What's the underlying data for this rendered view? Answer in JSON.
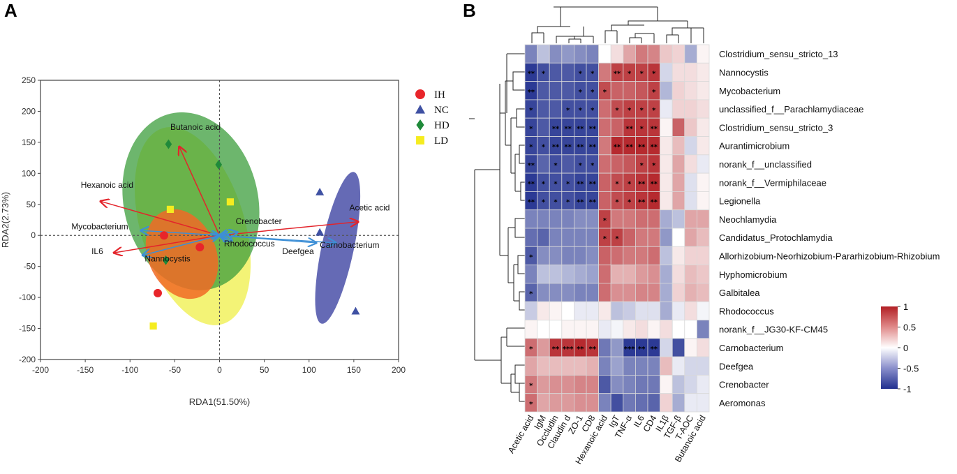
{
  "panels": {
    "a_label": "A",
    "b_label": "B"
  },
  "chart_data": [
    {
      "type": "scatter",
      "subtype": "RDA biplot",
      "title": "",
      "xlabel": "RDA1(51.50%)",
      "ylabel": "RDA2(2.73%)",
      "xlim": [
        -200,
        200
      ],
      "ylim": [
        -200,
        250
      ],
      "xticks": [
        -200,
        -150,
        -100,
        -50,
        0,
        50,
        100,
        150,
        200
      ],
      "yticks": [
        -200,
        -150,
        -100,
        -50,
        0,
        50,
        100,
        150,
        200,
        250
      ],
      "legend": [
        {
          "name": "IH",
          "shape": "circle",
          "color": "#e8252a"
        },
        {
          "name": "NC",
          "shape": "triangle",
          "color": "#3f51a3"
        },
        {
          "name": "HD",
          "shape": "diamond",
          "color": "#1f8a3a"
        },
        {
          "name": "LD",
          "shape": "square",
          "color": "#f5ec1f"
        }
      ],
      "ellipses": [
        {
          "group": "LD",
          "color": "#eeee3c",
          "opacity": 0.7,
          "cx": -30,
          "cy": 15,
          "rx": 58,
          "ry": 165,
          "angle": -17
        },
        {
          "group": "HD",
          "color": "#3c9e3c",
          "opacity": 0.75,
          "cx": -32,
          "cy": 55,
          "rx": 75,
          "ry": 145,
          "angle": -13
        },
        {
          "group": "IH",
          "color": "#f06a26",
          "opacity": 0.85,
          "cx": -42,
          "cy": -30,
          "rx": 38,
          "ry": 75,
          "angle": -23
        },
        {
          "group": "NC",
          "color": "#4a50a8",
          "opacity": 0.85,
          "cx": 132,
          "cy": -20,
          "rx": 18,
          "ry": 125,
          "angle": 12
        }
      ],
      "series": [
        {
          "name": "IH",
          "points": [
            [
              -62,
              0
            ],
            [
              -22,
              -19
            ],
            [
              -69,
              -93
            ]
          ]
        },
        {
          "name": "NC",
          "points": [
            [
              112,
              70
            ],
            [
              112,
              5
            ],
            [
              152,
              -122
            ]
          ]
        },
        {
          "name": "HD",
          "points": [
            [
              -57,
              147
            ],
            [
              -1,
              114
            ],
            [
              -60,
              -40
            ]
          ]
        },
        {
          "name": "LD",
          "points": [
            [
              -55,
              42
            ],
            [
              12,
              54
            ],
            [
              -74,
              -146
            ]
          ]
        }
      ],
      "env_arrows": [
        {
          "name": "Butanoic acid",
          "x": -45,
          "y": 143
        },
        {
          "name": "Hexanoic acid",
          "x": -133,
          "y": 55
        },
        {
          "name": "Acetic acid",
          "x": 155,
          "y": 22
        },
        {
          "name": "IL6",
          "x": -118,
          "y": -28
        }
      ],
      "species_arrows": [
        {
          "name": "Crenobacter",
          "x": 20,
          "y": 5
        },
        {
          "name": "Mycobacterium",
          "x": -88,
          "y": 8
        },
        {
          "name": "Nannocystis",
          "x": -86,
          "y": -32
        },
        {
          "name": "Rhodococcus",
          "x": 14,
          "y": -8
        },
        {
          "name": "Deefgea",
          "x": 108,
          "y": -12
        },
        {
          "name": "Carnobacterium",
          "x": 130,
          "y": -12
        }
      ]
    },
    {
      "type": "heatmap",
      "title": "",
      "rows": [
        "Clostridium_sensu_stricto_13",
        "Nannocystis",
        "Mycobacterium",
        "unclassified_f__Parachlamydiaceae",
        "Clostridium_sensu_stricto_3",
        "Aurantimicrobium",
        "norank_f__unclassified",
        "norank_f__Vermiphilaceae",
        "Legionella",
        "Neochlamydia",
        "Candidatus_Protochlamydia",
        "Allorhizobium-Neorhizobium-Pararhizobium-Rhizobium",
        "Hyphomicrobium",
        "Galbitalea",
        "Rhodococcus",
        "norank_f__JG30-KF-CM45",
        "Carnobacterium",
        "Deefgea",
        "Crenobacter",
        "Aeromonas"
      ],
      "columns": [
        "Acetic acid",
        "IgM",
        "Occludin",
        "Claudin d",
        "ZO-1",
        "CD8",
        "Hexanoic acid",
        "IgT",
        "TNF-α",
        "IL6",
        "CD4",
        "IL1β",
        "TGF-β",
        "T-AOC",
        "Butanoic acid"
      ],
      "values": [
        [
          -0.6,
          -0.3,
          -0.55,
          -0.5,
          -0.55,
          -0.6,
          0.0,
          0.15,
          0.4,
          0.6,
          0.55,
          0.25,
          0.2,
          -0.4,
          0.05
        ],
        [
          -0.95,
          -0.85,
          -0.8,
          -0.8,
          -0.85,
          -0.85,
          0.6,
          0.85,
          0.85,
          0.85,
          0.9,
          -0.2,
          0.15,
          0.15,
          0.1
        ],
        [
          -0.95,
          -0.8,
          -0.8,
          -0.8,
          -0.85,
          -0.85,
          0.8,
          0.7,
          0.7,
          0.75,
          0.85,
          -0.35,
          0.2,
          0.15,
          0.1
        ],
        [
          -0.9,
          -0.8,
          -0.8,
          -0.85,
          -0.85,
          -0.85,
          0.65,
          0.8,
          0.85,
          0.85,
          0.85,
          -0.1,
          0.2,
          0.2,
          0.15
        ],
        [
          -0.9,
          -0.8,
          -0.9,
          -0.9,
          -0.9,
          -0.9,
          0.65,
          0.7,
          0.9,
          0.9,
          0.9,
          0.05,
          0.7,
          0.25,
          0.1
        ],
        [
          -0.9,
          -0.85,
          -0.9,
          -0.9,
          -0.9,
          -0.9,
          0.6,
          0.95,
          0.95,
          0.95,
          0.95,
          0.1,
          0.3,
          -0.2,
          0.1
        ],
        [
          -0.9,
          -0.75,
          -0.85,
          -0.8,
          -0.85,
          -0.85,
          0.65,
          0.7,
          0.75,
          0.85,
          0.9,
          0.1,
          0.4,
          0.15,
          -0.1
        ],
        [
          -0.95,
          -0.85,
          -0.85,
          -0.85,
          -0.9,
          -0.9,
          0.7,
          0.8,
          0.85,
          0.9,
          0.95,
          0.1,
          0.4,
          -0.15,
          0.05
        ],
        [
          -0.95,
          -0.85,
          -0.85,
          -0.85,
          -0.9,
          -0.9,
          0.7,
          0.8,
          0.85,
          0.9,
          0.95,
          0.1,
          0.4,
          -0.15,
          0.05
        ],
        [
          -0.6,
          -0.6,
          -0.6,
          -0.6,
          -0.55,
          -0.55,
          0.85,
          0.6,
          0.6,
          0.65,
          0.65,
          -0.4,
          -0.3,
          0.4,
          0.4
        ],
        [
          -0.7,
          -0.75,
          -0.6,
          -0.6,
          -0.6,
          -0.6,
          0.85,
          0.85,
          0.7,
          0.6,
          0.6,
          -0.5,
          0.0,
          0.4,
          0.3
        ],
        [
          -0.8,
          -0.55,
          -0.55,
          -0.6,
          -0.6,
          -0.55,
          0.7,
          0.65,
          0.6,
          0.6,
          0.65,
          -0.3,
          0.1,
          0.2,
          0.2
        ],
        [
          -0.6,
          -0.3,
          -0.3,
          -0.35,
          -0.4,
          -0.45,
          0.65,
          0.35,
          0.35,
          0.45,
          0.5,
          -0.4,
          0.15,
          0.3,
          0.25
        ],
        [
          -0.75,
          -0.55,
          -0.55,
          -0.55,
          -0.6,
          -0.6,
          0.65,
          0.5,
          0.5,
          0.55,
          0.55,
          -0.4,
          0.2,
          0.35,
          0.3
        ],
        [
          -0.25,
          0.1,
          0.05,
          0.0,
          -0.1,
          -0.1,
          0.1,
          -0.3,
          -0.25,
          -0.15,
          -0.15,
          -0.4,
          -0.1,
          0.15,
          -0.05
        ],
        [
          0.05,
          0.0,
          0.0,
          0.05,
          0.05,
          0.05,
          -0.1,
          -0.05,
          0.1,
          0.15,
          0.05,
          0.15,
          0.0,
          0.0,
          -0.6
        ],
        [
          0.65,
          0.45,
          0.9,
          0.9,
          0.95,
          0.9,
          -0.65,
          -0.5,
          -0.95,
          -0.95,
          -0.95,
          -0.2,
          -0.85,
          0.05,
          0.15
        ],
        [
          0.4,
          0.3,
          0.3,
          0.3,
          0.3,
          0.35,
          -0.6,
          -0.45,
          -0.6,
          -0.6,
          -0.6,
          0.3,
          -0.1,
          -0.2,
          -0.2
        ],
        [
          0.6,
          0.45,
          0.5,
          0.5,
          0.55,
          0.55,
          -0.8,
          -0.55,
          -0.6,
          -0.65,
          -0.65,
          0.05,
          -0.3,
          -0.2,
          -0.1
        ],
        [
          0.65,
          0.4,
          0.45,
          0.45,
          0.5,
          0.5,
          -0.6,
          -0.85,
          -0.65,
          -0.7,
          -0.75,
          0.2,
          -0.4,
          -0.1,
          -0.1
        ]
      ],
      "significance": [
        [
          "",
          "",
          "",
          "",
          "",
          "",
          "",
          "",
          "",
          "",
          "",
          "",
          "",
          "",
          ""
        ],
        [
          "**",
          "*",
          "",
          "",
          "*",
          "*",
          "",
          "**",
          "*",
          "*",
          "*",
          "",
          "",
          "",
          ""
        ],
        [
          "**",
          "",
          "",
          "",
          "*",
          "*",
          "*",
          "",
          "",
          "",
          "*",
          "",
          "",
          "",
          ""
        ],
        [
          "*",
          "",
          "",
          "*",
          "*",
          "*",
          "",
          "*",
          "*",
          "*",
          "*",
          "",
          "",
          "",
          ""
        ],
        [
          "*",
          "",
          "**",
          "**",
          "**",
          "**",
          "",
          "",
          "**",
          "*",
          "**",
          "",
          "",
          "",
          ""
        ],
        [
          "*",
          "*",
          "**",
          "**",
          "**",
          "**",
          "",
          "**",
          "**",
          "**",
          "**",
          "",
          "",
          "",
          ""
        ],
        [
          "**",
          "",
          "*",
          "",
          "*",
          "*",
          "",
          "",
          "",
          "*",
          "*",
          "",
          "",
          "",
          ""
        ],
        [
          "**",
          "*",
          "*",
          "*",
          "**",
          "**",
          "",
          "*",
          "*",
          "**",
          "**",
          "",
          "",
          "",
          ""
        ],
        [
          "**",
          "*",
          "*",
          "*",
          "**",
          "**",
          "",
          "*",
          "*",
          "**",
          "**",
          "",
          "",
          "",
          ""
        ],
        [
          "",
          "",
          "",
          "",
          "",
          "",
          "*",
          "",
          "",
          "",
          "",
          "",
          "",
          "",
          ""
        ],
        [
          "",
          "",
          "",
          "",
          "",
          "",
          "*",
          "*",
          "",
          "",
          "",
          "",
          "",
          "",
          ""
        ],
        [
          "*",
          "",
          "",
          "",
          "",
          "",
          "",
          "",
          "",
          "",
          "",
          "",
          "",
          "",
          ""
        ],
        [
          "",
          "",
          "",
          "",
          "",
          "",
          "",
          "",
          "",
          "",
          "",
          "",
          "",
          "",
          ""
        ],
        [
          "*",
          "",
          "",
          "",
          "",
          "",
          "",
          "",
          "",
          "",
          "",
          "",
          "",
          "",
          ""
        ],
        [
          "",
          "",
          "",
          "",
          "",
          "",
          "",
          "",
          "",
          "",
          "",
          "",
          "",
          "",
          ""
        ],
        [
          "",
          "",
          "",
          "",
          "",
          "",
          "",
          "",
          "",
          "",
          "",
          "",
          "",
          "",
          ""
        ],
        [
          "*",
          "",
          "**",
          "***",
          "**",
          "**",
          "",
          "",
          "***",
          "**",
          "**",
          "",
          "",
          "",
          ""
        ],
        [
          "",
          "",
          "",
          "",
          "",
          "",
          "",
          "",
          "",
          "",
          "",
          "",
          "",
          "",
          ""
        ],
        [
          "*",
          "",
          "",
          "",
          "",
          "",
          "",
          "",
          "",
          "",
          "",
          "",
          "",
          "",
          ""
        ],
        [
          "*",
          "",
          "",
          "",
          "",
          "",
          "",
          "",
          "",
          "",
          "",
          "",
          "",
          "",
          ""
        ]
      ],
      "colorbar": {
        "min": -1,
        "max": 1,
        "ticks": [
          "1",
          "0.5",
          "0",
          "-0.5",
          "-1"
        ],
        "low_color": "#21308f",
        "mid_color": "#ffffff",
        "high_color": "#b21f24"
      }
    }
  ]
}
